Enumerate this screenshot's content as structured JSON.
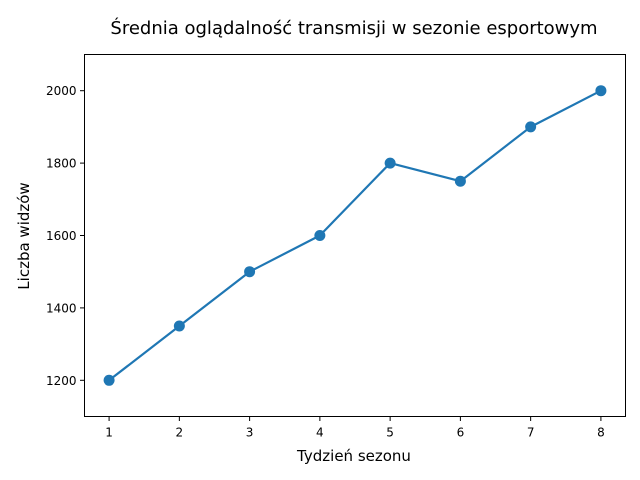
{
  "chart_data": {
    "type": "line",
    "title": "Średnia oglądalność transmisji w sezonie esportowym",
    "xlabel": "Tydzień sezonu",
    "ylabel": "Liczba widzów",
    "x": [
      1,
      2,
      3,
      4,
      5,
      6,
      7,
      8
    ],
    "series": [
      {
        "values": [
          1200,
          1350,
          1500,
          1600,
          1800,
          1750,
          1900,
          2000
        ],
        "color": "#1f77b4",
        "marker": "circle"
      }
    ],
    "xlim": [
      0.65,
      8.35
    ],
    "ylim": [
      1100,
      2100
    ],
    "xticks": [
      1,
      2,
      3,
      4,
      5,
      6,
      7,
      8
    ],
    "yticks": [
      1200,
      1400,
      1600,
      1800,
      2000
    ],
    "grid": false,
    "legend": "none"
  }
}
